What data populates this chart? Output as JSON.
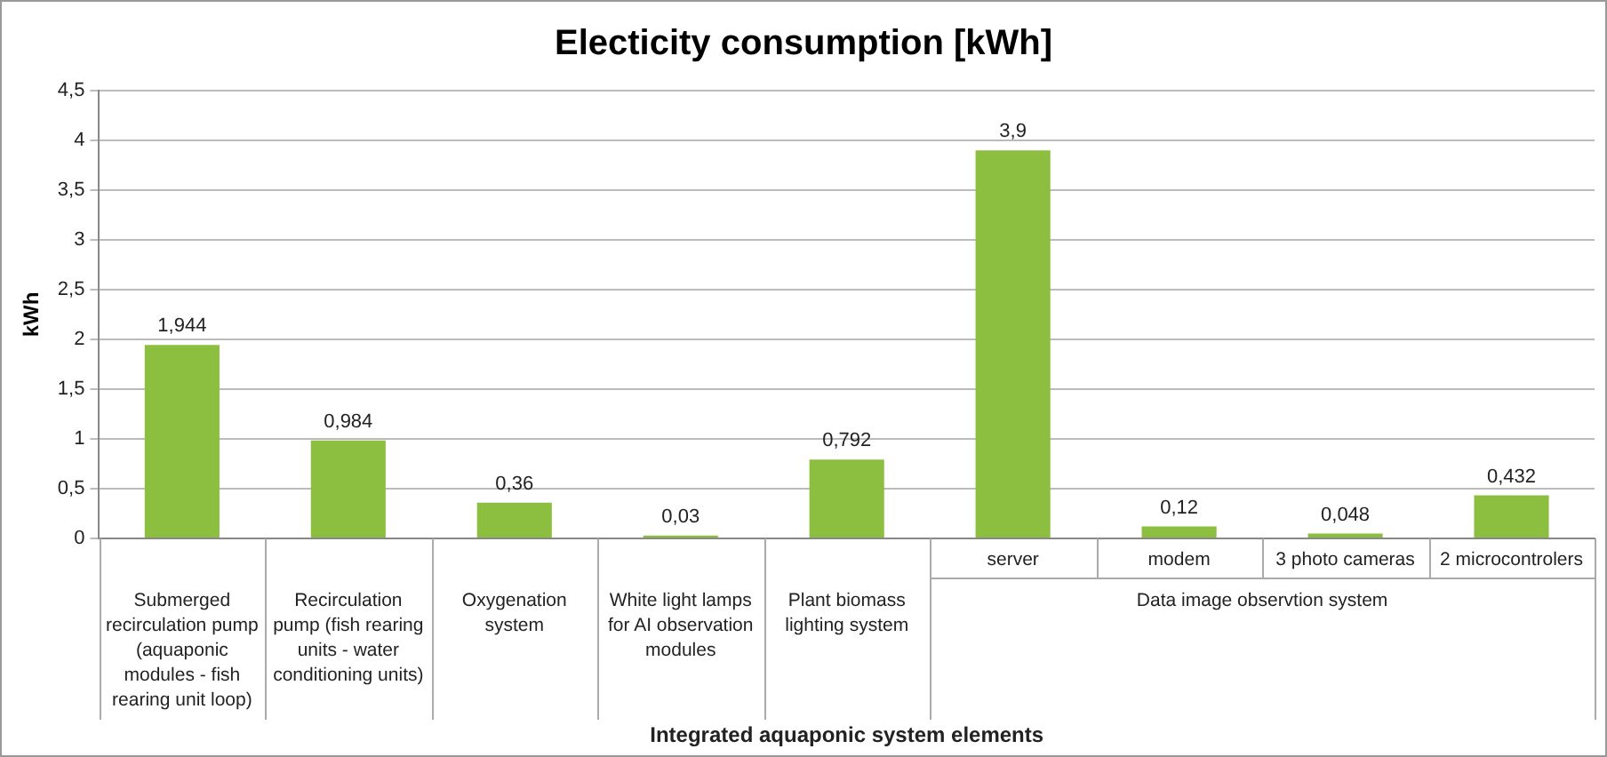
{
  "chart_data": {
    "type": "bar",
    "title": "Electicity consumption [kWh]",
    "xlabel": "Integrated aquaponic system elements",
    "ylabel": "kWh",
    "categories": [
      "Submerged recirculation pump (aquaponic modules - fish rearing unit loop)",
      "Recirculation pump (fish rearing units - water conditioning units)",
      "Oxygenation system",
      "White light lamps for AI observation modules",
      "Plant biomass lighting system",
      "server",
      "modem",
      "3 photo cameras",
      "2 microcontrolers"
    ],
    "values": [
      1.944,
      0.984,
      0.36,
      0.03,
      0.792,
      3.9,
      0.12,
      0.048,
      0.432
    ],
    "value_labels": [
      "1,944",
      "0,984",
      "0,36",
      "0,03",
      "0,792",
      "3,9",
      "0,12",
      "0,048",
      "0,432"
    ],
    "color": "#8cbf3f",
    "ylim": [
      0,
      4.5
    ],
    "yticks": [
      0,
      {
        "value": 0.5,
        "label": "0,5"
      },
      1,
      {
        "value": 1.5,
        "label": "1,5"
      },
      2,
      {
        "value": 2.5,
        "label": "2,5"
      },
      3,
      {
        "value": 3.5,
        "label": "3,5"
      },
      4,
      {
        "value": 4.5,
        "label": "4,5"
      }
    ],
    "grid": "y",
    "legend": false,
    "annotations": [
      "Data image observtion system"
    ]
  }
}
